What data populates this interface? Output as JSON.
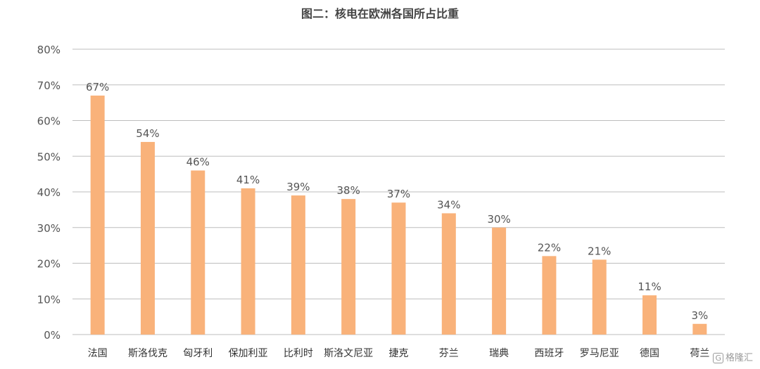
{
  "chart_data": {
    "type": "bar",
    "title": "图二：核电在欧洲各国所占比重",
    "categories": [
      "法国",
      "斯洛伐克",
      "匈牙利",
      "保加利亚",
      "比利时",
      "斯洛文尼亚",
      "捷克",
      "芬兰",
      "瑞典",
      "西班牙",
      "罗马尼亚",
      "德国",
      "荷兰"
    ],
    "values": [
      67,
      54,
      46,
      41,
      39,
      38,
      37,
      34,
      30,
      22,
      21,
      11,
      3
    ],
    "value_labels": [
      "67%",
      "54%",
      "46%",
      "41%",
      "39%",
      "38%",
      "37%",
      "34%",
      "30%",
      "22%",
      "21%",
      "11%",
      "3%"
    ],
    "ylim": [
      0,
      80
    ],
    "yticks": [
      0,
      10,
      20,
      30,
      40,
      50,
      60,
      70,
      80
    ],
    "ytick_labels": [
      "0%",
      "10%",
      "20%",
      "30%",
      "40%",
      "50%",
      "60%",
      "70%",
      "80%"
    ],
    "grid": true,
    "bar_color": "#f9b27a"
  },
  "watermark": {
    "logo": "G",
    "text": "格隆汇"
  }
}
